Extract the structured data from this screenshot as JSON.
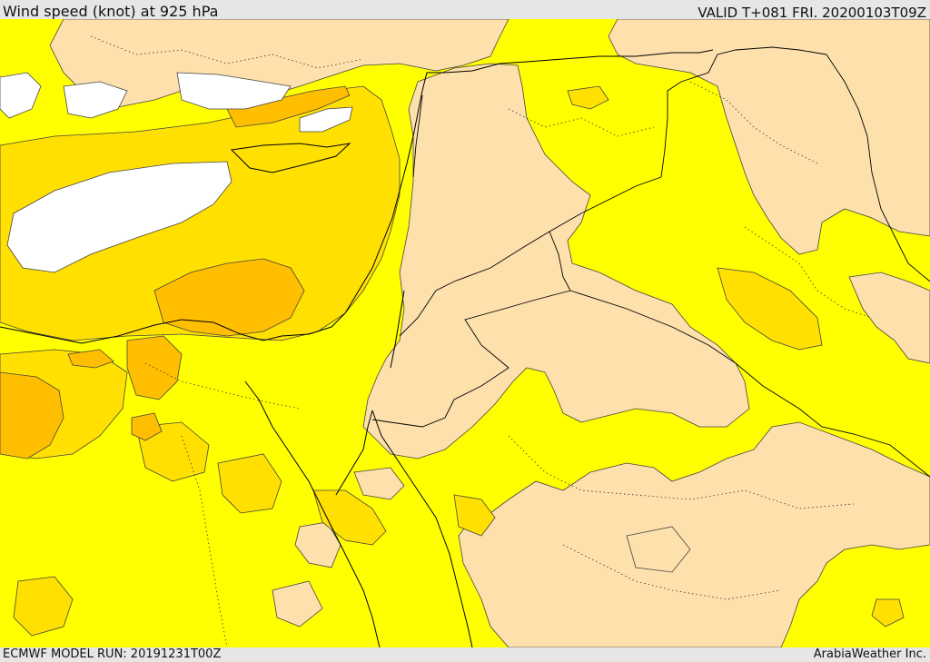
{
  "header": {
    "title": "Wind speed (knot) at 925 hPa",
    "valid": "VALID T+081 FRI. 20200103T09Z"
  },
  "footer": {
    "model_run": "ECMWF MODEL RUN: 20191231T00Z",
    "credit": "ArabiaWeather Inc."
  },
  "colors": {
    "calm": "#ffffff",
    "light": "#fde0ac",
    "moderate": "#ffff00",
    "fresh": "#ffe000",
    "strong": "#ffbf00",
    "contour": "#444444",
    "coast": "#000000"
  }
}
